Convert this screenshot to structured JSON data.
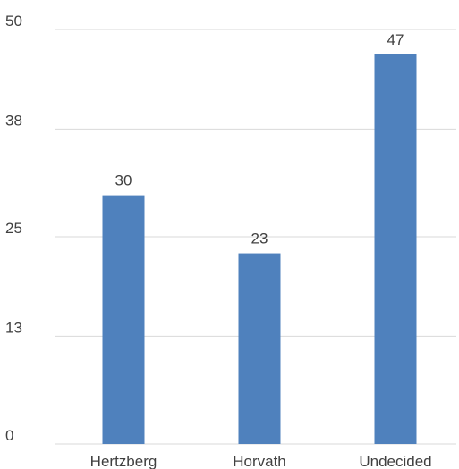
{
  "chart_data": {
    "type": "bar",
    "categories": [
      "Hertzberg",
      "Horvath",
      "Undecided"
    ],
    "values": [
      30,
      23,
      47
    ],
    "data_labels": [
      "30",
      "23",
      "47"
    ],
    "yticks": [
      0,
      13,
      25,
      38,
      50
    ],
    "ytick_labels": [
      "0",
      "13",
      "25",
      "38",
      "50"
    ],
    "ylim": [
      0,
      50
    ],
    "grid": true,
    "legend": "none",
    "colors": {
      "bar": "#4f81bd"
    }
  }
}
